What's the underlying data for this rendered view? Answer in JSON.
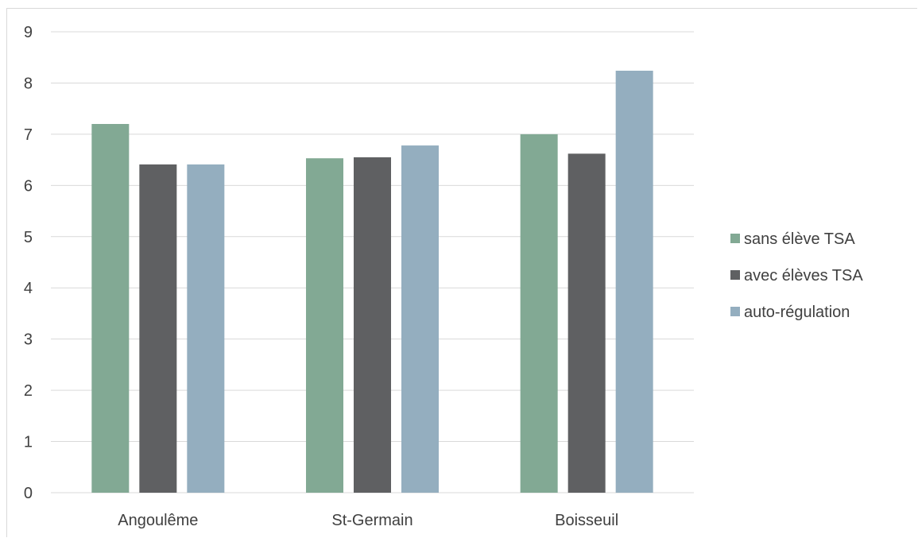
{
  "chart_data": {
    "type": "bar",
    "categories": [
      "Angoulême",
      "St-Germain",
      "Boisseuil"
    ],
    "series": [
      {
        "name": "sans élève TSA",
        "color": "#82a994",
        "values": [
          7.2,
          6.53,
          7.0
        ]
      },
      {
        "name": "avec élèves TSA",
        "color": "#5f6062",
        "values": [
          6.41,
          6.55,
          6.62
        ]
      },
      {
        "name": "auto-régulation",
        "color": "#94aebf",
        "values": [
          6.41,
          6.78,
          8.24
        ]
      }
    ],
    "yticks": [
      "0",
      "1",
      "2",
      "3",
      "4",
      "5",
      "6",
      "7",
      "8",
      "9"
    ],
    "ylim": [
      0,
      9
    ],
    "grid": true,
    "legend_position": "right"
  }
}
